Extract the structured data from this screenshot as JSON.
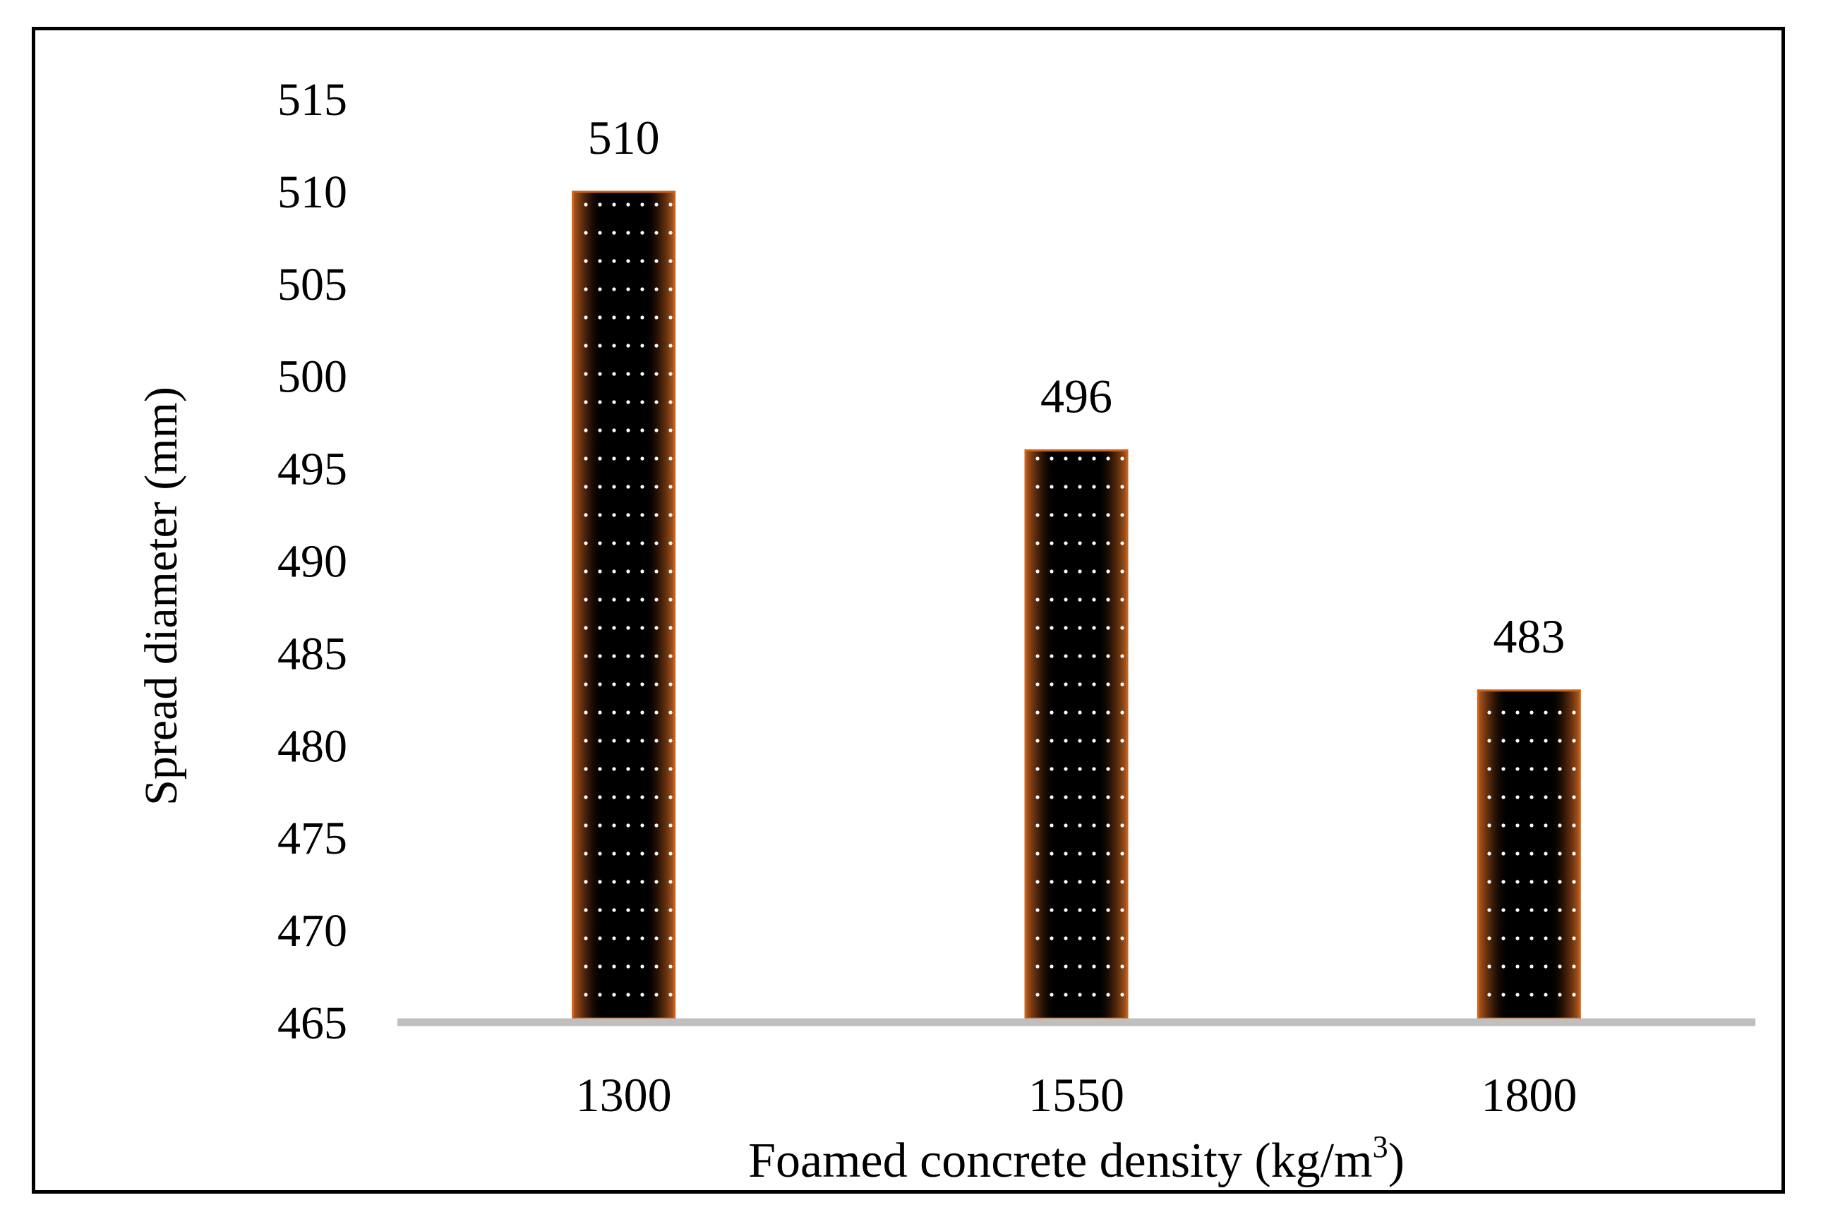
{
  "chart_data": {
    "type": "bar",
    "title": "",
    "categories": [
      "1300",
      "1550",
      "1800"
    ],
    "values": [
      510,
      496,
      483
    ],
    "data_labels": [
      "510",
      "496",
      "483"
    ],
    "xlabel": "Foamed concrete density (kg/m",
    "xlabel_sup": "3",
    "xlabel_end": ")",
    "ylabel": "Spread diameter  (mm)",
    "ylim": [
      465,
      515
    ],
    "yticks": [
      465,
      470,
      475,
      480,
      485,
      490,
      495,
      500,
      505,
      510,
      515
    ],
    "grid": false,
    "legend": "none",
    "colors": {
      "bar_fill": "#000000",
      "bar_edge": "#c8641e",
      "bar_dots": "#ffffff",
      "axis_line": "#bfbfbf",
      "frame": "#000000"
    }
  }
}
